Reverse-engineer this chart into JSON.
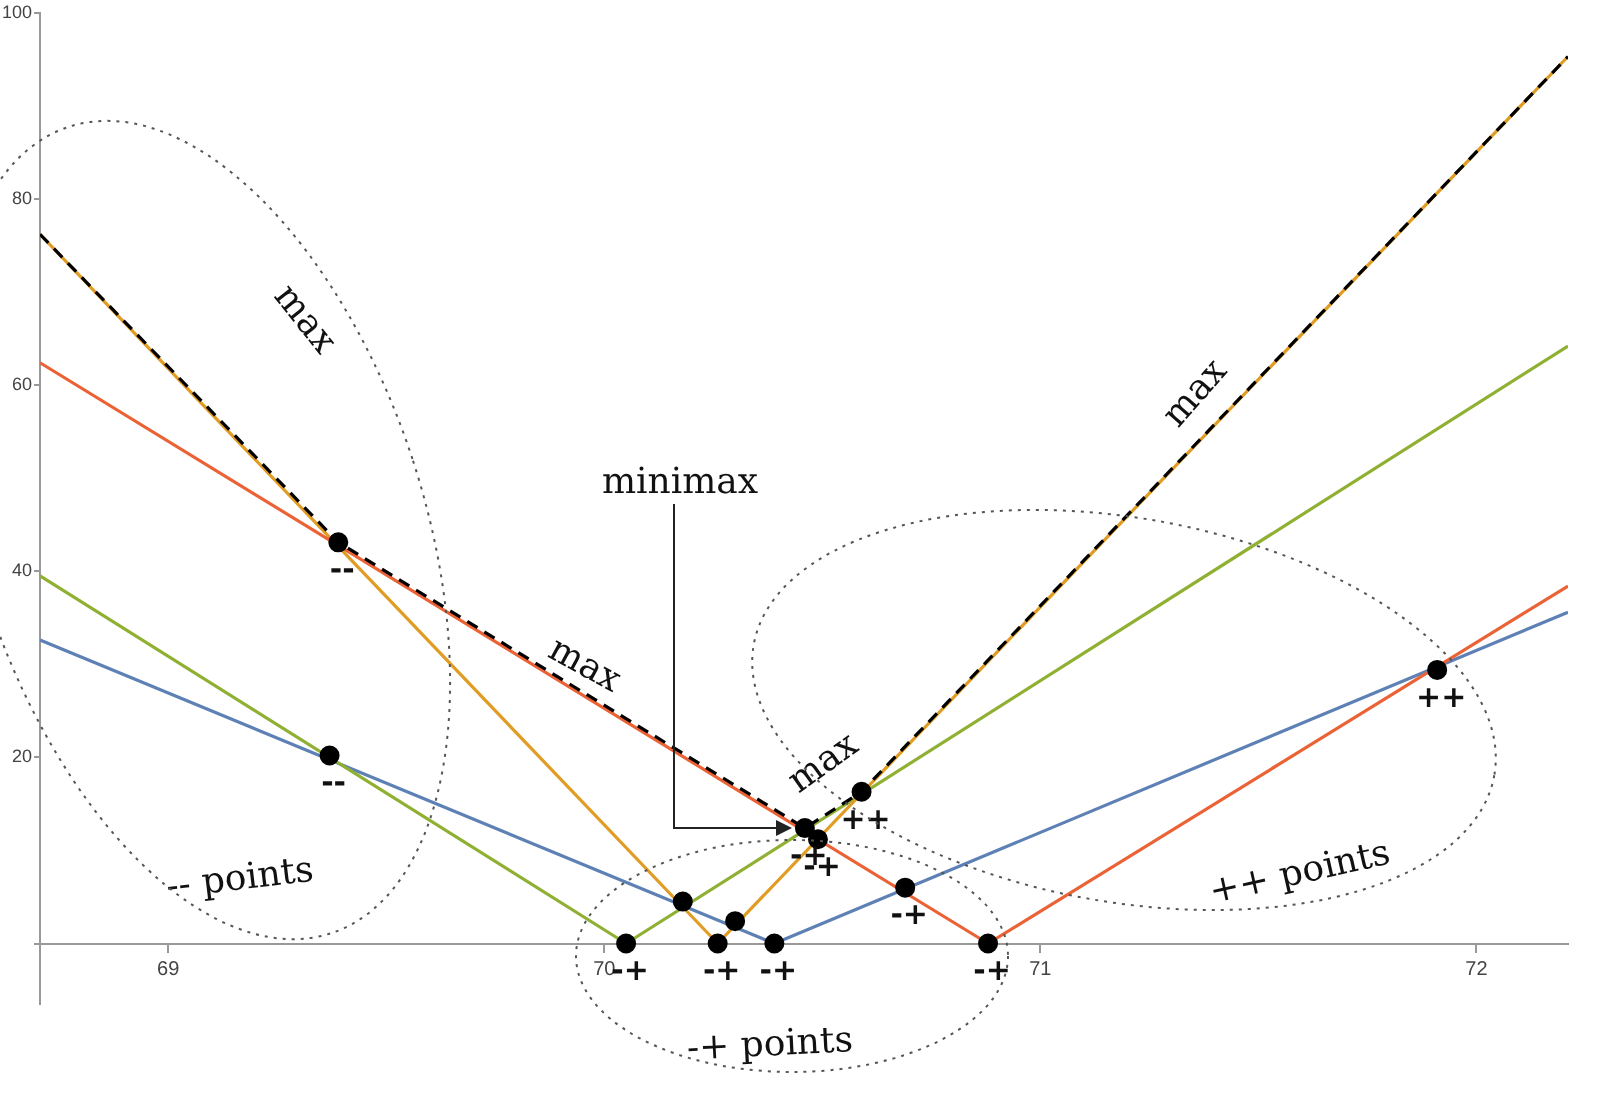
{
  "chart_data": {
    "type": "line",
    "series": [
      {
        "color": "#5e81b5",
        "x": [
          68.706,
          70.39,
          72.21
        ],
        "values": [
          32.6,
          0,
          35.6
        ]
      },
      {
        "color": "#8fb032",
        "x": [
          68.706,
          70.05,
          72.21
        ],
        "values": [
          39.5,
          0,
          64.2
        ]
      },
      {
        "color": "#e19c24",
        "x": [
          68.706,
          70.26,
          72.21
        ],
        "values": [
          76.2,
          0,
          95.3
        ]
      },
      {
        "color": "#eb6235",
        "x": [
          68.706,
          70.88,
          72.21
        ],
        "values": [
          62.4,
          0,
          38.4
        ]
      },
      {
        "color": "#000000",
        "line_style": "dashed",
        "x": [
          68.706,
          69.39,
          70.46,
          70.59,
          72.21
        ],
        "values": [
          76.2,
          43.1,
          12.4,
          16.3,
          95.3
        ]
      },
      {
        "type": "scatter",
        "color": "#000000",
        "marker": "circle",
        "x": [
          69.39,
          69.37,
          70.05,
          70.18,
          70.3,
          70.26,
          70.39,
          70.46,
          70.49,
          70.59,
          70.69,
          70.88,
          71.91
        ],
        "values": [
          43.1,
          20.2,
          0,
          4.5,
          2.4,
          0,
          0,
          12.4,
          11.2,
          16.3,
          6.0,
          0,
          29.4
        ]
      }
    ],
    "xlim": [
      68.706,
      72.21
    ],
    "xticks": [
      69,
      70,
      71,
      72
    ],
    "ylim": [
      -6.5,
      100
    ],
    "yticks": [
      {
        "value": 0,
        "label": null
      },
      20,
      40,
      60,
      80,
      100
    ],
    "grid": false,
    "legend": false,
    "marker": "none",
    "line_style": "solid",
    "annotations": [
      {
        "text": "--",
        "x": 69.39,
        "y": 43.1
      },
      {
        "text": "--",
        "x": 69.37,
        "y": 20.2
      },
      {
        "text": "-+",
        "x": 70.05,
        "y": 0
      },
      {
        "text": "-+",
        "x": 70.26,
        "y": 0
      },
      {
        "text": "-+",
        "x": 70.39,
        "y": 0
      },
      {
        "text": "-+",
        "x": 70.46,
        "y": 12.4
      },
      {
        "text": "-+",
        "x": 70.49,
        "y": 11.2
      },
      {
        "text": "++",
        "x": 70.59,
        "y": 16.3
      },
      {
        "text": "-+",
        "x": 70.69,
        "y": 6.0
      },
      {
        "text": "-+",
        "x": 70.88,
        "y": 0
      },
      {
        "text": "++",
        "x": 71.91,
        "y": 29.4
      },
      "max",
      "max",
      "max",
      "max",
      "minimax",
      "-- points",
      "-+ points",
      "++ points"
    ]
  }
}
